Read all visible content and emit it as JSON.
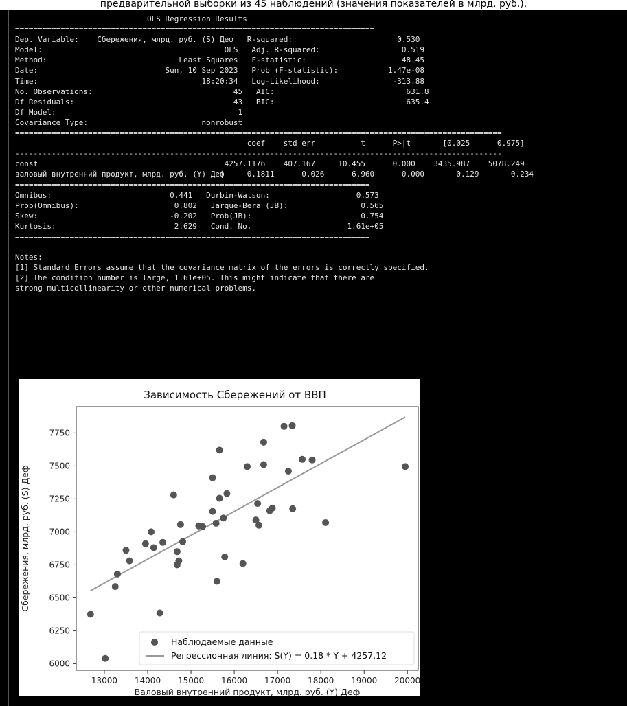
{
  "page_header": "предварительной выборки из 45 наблюдений (значения показателей в млрд. руб.).",
  "regression_summary": {
    "lines": [
      "                             OLS Regression Results                            ",
      "===============================================================================",
      "Dep. Variable:    Сбережения, млрд. руб. (S) Деф   R-squared:                       0.530",
      "Model:                                        OLS   Adj. R-squared:                  0.519",
      "Method:                             Least Squares   F-statistic:                     48.45",
      "Date:                            Sun, 10 Sep 2023   Prob (F-statistic):           1.47e-08",
      "Time:                                    18:20:34   Log-Likelihood:                -313.88",
      "No. Observations:                               45   AIC:                             631.8",
      "Df Residuals:                                   43   BIC:                             635.4",
      "Df Model:                                        1                                         ",
      "Covariance Type:                         nonrobust                                         ",
      "===========================================================================================================",
      "                                                   coef    std err          t      P>|t|      [0.025      0.975]",
      "-----------------------------------------------------------------------------------------------------------",
      "const                                         4257.1176    407.167     10.455      0.000    3435.987    5078.249",
      "валовый внутренний продукт, млрд. руб. (Y) Деф     0.1811      0.026      6.960      0.000       0.129       0.234",
      "==============================================================================",
      "Omnibus:                          0.441   Durbin-Watson:                   0.573",
      "Prob(Omnibus):                     0.802   Jarque-Bera (JB):                0.565",
      "Skew:                             -0.202   Prob(JB):                        0.754",
      "Kurtosis:                          2.629   Cond. No.                     1.61e+05",
      "==============================================================================",
      "",
      "Notes:",
      "[1] Standard Errors assume that the covariance matrix of the errors is correctly specified.",
      "[2] The condition number is large, 1.61e+05. This might indicate that there are",
      "strong multicollinearity or other numerical problems."
    ]
  },
  "chart_data": {
    "type": "scatter",
    "title": "Зависимость Сбережений от ВВП",
    "xlabel": "Валовый внутренний продукт, млрд. руб. (Y) Деф",
    "ylabel": "Сбережения, млрд. руб. (S) Деф",
    "xlim": [
      12350,
      20250
    ],
    "ylim": [
      5950,
      7950
    ],
    "xticks": [
      13000,
      14000,
      15000,
      16000,
      17000,
      18000,
      19000,
      20000
    ],
    "yticks": [
      6000,
      6250,
      6500,
      6750,
      7000,
      7250,
      7500,
      7750
    ],
    "grid": false,
    "legend_position": "lower-right",
    "colors": {
      "points": "#555555",
      "line": "#999999"
    },
    "series": [
      {
        "name": "Наблюдаемые данные",
        "kind": "scatter",
        "points": [
          [
            12680,
            6375
          ],
          [
            13020,
            6040
          ],
          [
            13250,
            6585
          ],
          [
            13300,
            6680
          ],
          [
            13500,
            6860
          ],
          [
            13580,
            6780
          ],
          [
            13950,
            6910
          ],
          [
            14080,
            7000
          ],
          [
            14140,
            6880
          ],
          [
            14280,
            6385
          ],
          [
            14350,
            6920
          ],
          [
            14600,
            7280
          ],
          [
            14680,
            6850
          ],
          [
            14680,
            6750
          ],
          [
            14720,
            6780
          ],
          [
            14760,
            7055
          ],
          [
            14810,
            6925
          ],
          [
            15180,
            7045
          ],
          [
            15270,
            7040
          ],
          [
            15500,
            7410
          ],
          [
            15500,
            7155
          ],
          [
            15580,
            7065
          ],
          [
            15600,
            6625
          ],
          [
            15660,
            7255
          ],
          [
            15660,
            7620
          ],
          [
            15750,
            7105
          ],
          [
            15780,
            6810
          ],
          [
            15830,
            7290
          ],
          [
            16200,
            6760
          ],
          [
            16300,
            7495
          ],
          [
            16500,
            7090
          ],
          [
            16540,
            7215
          ],
          [
            16570,
            7050
          ],
          [
            16680,
            7680
          ],
          [
            16680,
            7510
          ],
          [
            16820,
            7160
          ],
          [
            16880,
            7180
          ],
          [
            17150,
            7800
          ],
          [
            17250,
            7460
          ],
          [
            17340,
            7805
          ],
          [
            17350,
            7175
          ],
          [
            17570,
            7550
          ],
          [
            17800,
            7545
          ],
          [
            18110,
            7070
          ],
          [
            19950,
            7495
          ]
        ]
      },
      {
        "name": "Регрессионная линия: S(Y) = 0.18 * Y + 4257.12",
        "kind": "line",
        "points": [
          [
            12680,
            6553.6
          ],
          [
            19950,
            7870.3
          ]
        ]
      }
    ]
  }
}
